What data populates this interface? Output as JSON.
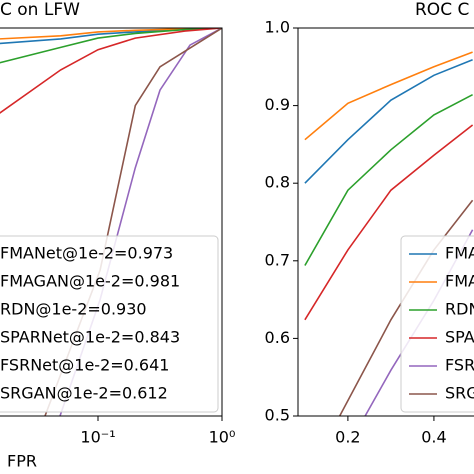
{
  "chart_data": [
    {
      "type": "line",
      "title": "C on LFW",
      "xlabel": "FPR",
      "xscale": "log",
      "xlim": [
        0.01,
        1
      ],
      "ylim": [
        0.5,
        1.0
      ],
      "xticks": [
        {
          "value": 0.1,
          "label": "10⁻¹"
        },
        {
          "value": 1,
          "label": "10⁰"
        }
      ],
      "legend": "lower right",
      "series": [
        {
          "name": "FMANet@1e-2=0.973",
          "color": "#1f77b4",
          "x": [
            0.016,
            0.05,
            0.1,
            0.2,
            0.5,
            1
          ],
          "values": [
            0.98,
            0.986,
            0.992,
            0.995,
            0.998,
            1.0
          ]
        },
        {
          "name": "FMAGAN@1e-2=0.981",
          "color": "#ff7f0e",
          "x": [
            0.016,
            0.05,
            0.1,
            0.2,
            0.5,
            1
          ],
          "values": [
            0.986,
            0.99,
            0.995,
            0.997,
            0.999,
            1.0
          ]
        },
        {
          "name": "RDN@1e-2=0.930",
          "color": "#2ca02c",
          "x": [
            0.016,
            0.05,
            0.1,
            0.2,
            0.5,
            1
          ],
          "values": [
            0.955,
            0.975,
            0.987,
            0.993,
            0.998,
            1.0
          ]
        },
        {
          "name": "SPARNet@1e-2=0.843",
          "color": "#d62728",
          "x": [
            0.016,
            0.05,
            0.1,
            0.2,
            0.5,
            1
          ],
          "values": [
            0.89,
            0.946,
            0.972,
            0.987,
            0.996,
            1.0
          ]
        },
        {
          "name": "FSRNet@1e-2=0.641",
          "color": "#9467bd",
          "x": [
            0.0494,
            0.104,
            0.2,
            0.316,
            0.552,
            1
          ],
          "values": [
            0.5,
            0.65,
            0.82,
            0.92,
            0.978,
            1.0
          ]
        },
        {
          "name": "SRGAN@1e-2=0.612",
          "color": "#8c564b",
          "x": [
            0.0374,
            0.104,
            0.2,
            0.316,
            1
          ],
          "values": [
            0.5,
            0.688,
            0.9,
            0.95,
            1.0
          ]
        }
      ]
    },
    {
      "type": "line",
      "title": "ROC C",
      "xlim": [
        0.084,
        1.0
      ],
      "ylim": [
        0.5,
        1.0
      ],
      "xticks": [
        0.2,
        0.4
      ],
      "yticks": [
        0.5,
        0.6,
        0.7,
        0.8,
        0.9,
        {
          "value": 1,
          "label": "1.0"
        }
      ],
      "legend": "lower right",
      "series": [
        {
          "name": "FMANet",
          "color": "#1f77b4",
          "x": [
            0.1,
            0.2,
            0.3,
            0.4,
            0.49
          ],
          "values": [
            0.8,
            0.856,
            0.907,
            0.939,
            0.959
          ]
        },
        {
          "name": "FMAGAN",
          "color": "#ff7f0e",
          "x": [
            0.1,
            0.2,
            0.3,
            0.4,
            0.49
          ],
          "values": [
            0.856,
            0.903,
            0.927,
            0.95,
            0.969
          ]
        },
        {
          "name": "RDN",
          "color": "#2ca02c",
          "x": [
            0.1,
            0.2,
            0.3,
            0.4,
            0.49
          ],
          "values": [
            0.694,
            0.791,
            0.843,
            0.888,
            0.914
          ]
        },
        {
          "name": "SPARNet",
          "color": "#d62728",
          "x": [
            0.1,
            0.2,
            0.3,
            0.4,
            0.49
          ],
          "values": [
            0.624,
            0.714,
            0.791,
            0.836,
            0.875
          ]
        },
        {
          "name": "FSRNet",
          "color": "#9467bd",
          "x": [
            0.24,
            0.3,
            0.4,
            0.49
          ],
          "values": [
            0.5,
            0.559,
            0.649,
            0.74
          ]
        },
        {
          "name": "SRGAN",
          "color": "#8c564b",
          "x": [
            0.181,
            0.3,
            0.4,
            0.49
          ],
          "values": [
            0.5,
            0.624,
            0.714,
            0.778
          ]
        }
      ]
    }
  ]
}
